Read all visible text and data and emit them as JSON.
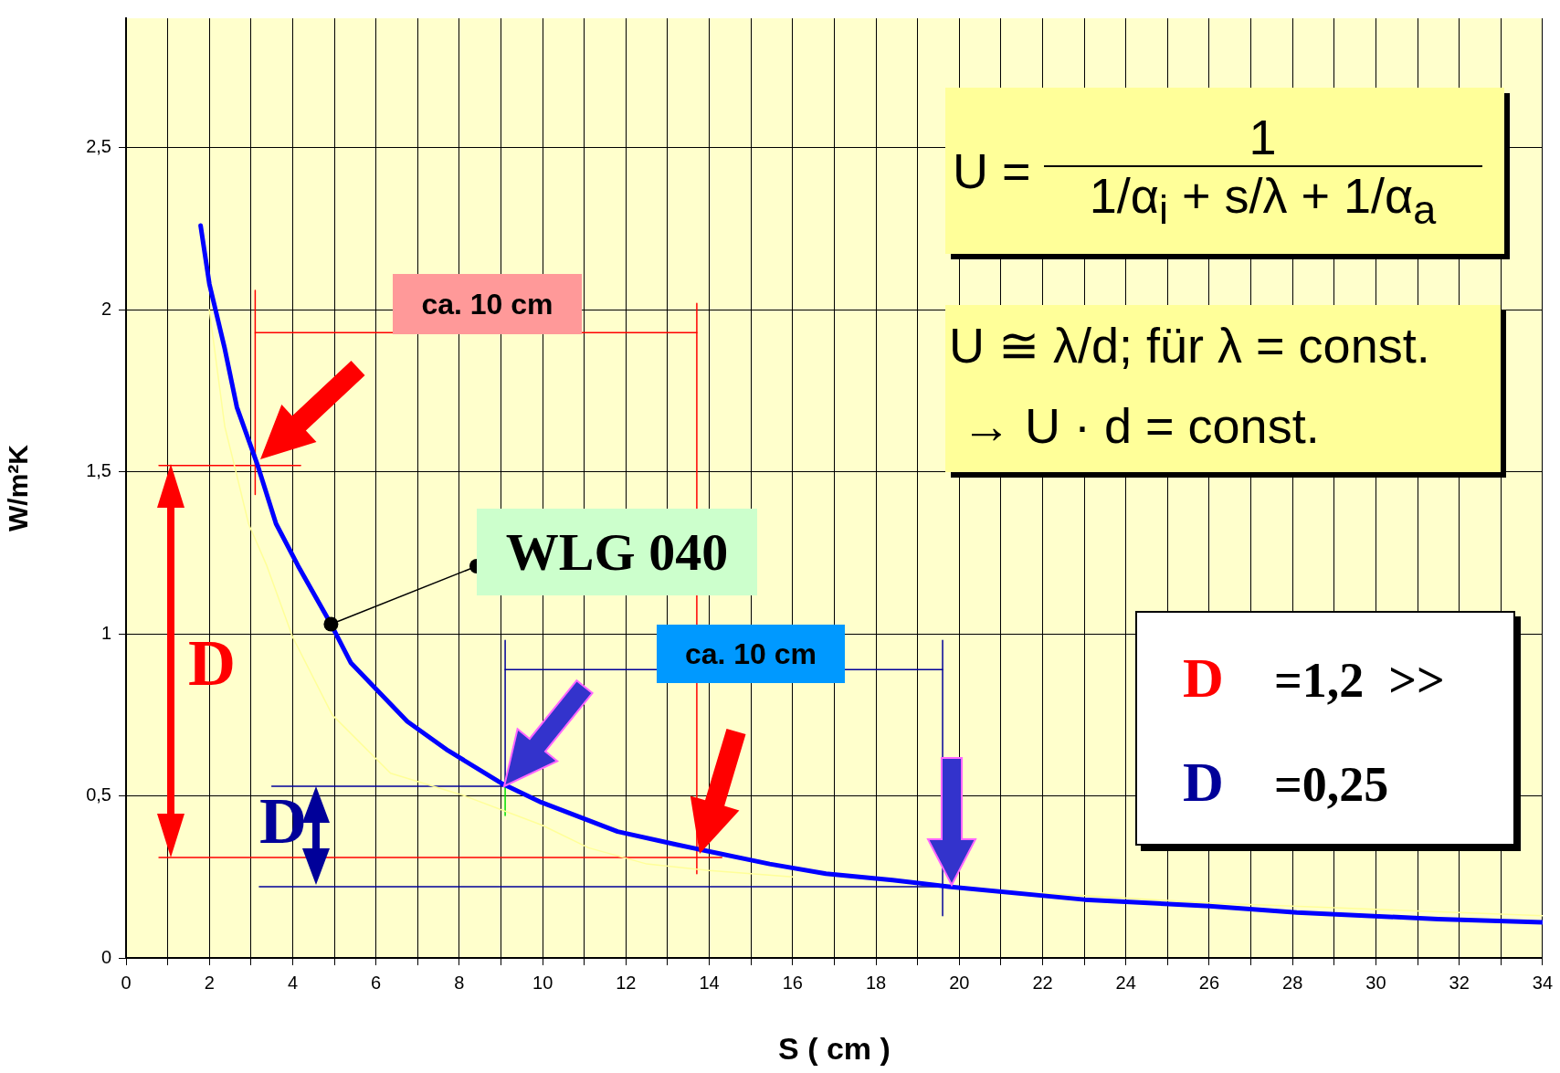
{
  "chart_data": {
    "type": "line",
    "xlabel": "S ( cm )",
    "ylabel": "W/m²K",
    "xlim": [
      0,
      34
    ],
    "ylim": [
      0,
      2.9
    ],
    "xticks": [
      0,
      {
        "value": 1,
        "label": null
      },
      2,
      {
        "value": 3,
        "label": null
      },
      4,
      {
        "value": 5,
        "label": null
      },
      6,
      {
        "value": 7,
        "label": null
      },
      8,
      {
        "value": 9,
        "label": null
      },
      10,
      {
        "value": 11,
        "label": null
      },
      12,
      {
        "value": 13,
        "label": null
      },
      14,
      {
        "value": 15,
        "label": null
      },
      16,
      {
        "value": 17,
        "label": null
      },
      18,
      {
        "value": 19,
        "label": null
      },
      20,
      {
        "value": 21,
        "label": null
      },
      22,
      {
        "value": 23,
        "label": null
      },
      24,
      {
        "value": 25,
        "label": null
      },
      26,
      {
        "value": 27,
        "label": null
      },
      28,
      {
        "value": 29,
        "label": null
      },
      30,
      {
        "value": 31,
        "label": null
      },
      32,
      {
        "value": 33,
        "label": null
      },
      34
    ],
    "yticks": [
      0,
      {
        "value": 0.5,
        "label": "0,5"
      },
      1,
      {
        "value": 1.5,
        "label": "1,5"
      },
      2,
      {
        "value": 2.5,
        "label": "2,5"
      }
    ],
    "grid": true,
    "series": [
      {
        "color": "#ffff99",
        "x": [
          2.0,
          2.37,
          2.62,
          2.94,
          3.38,
          4.0,
          4.95,
          6.35,
          8.13,
          9.98,
          11.1,
          12.5,
          14.0,
          16.0,
          18.2,
          22.0,
          26.0,
          30.0,
          34.0
        ],
        "values": [
          2.0,
          1.64,
          1.51,
          1.34,
          1.21,
          0.99,
          0.75,
          0.57,
          0.5,
          0.41,
          0.34,
          0.29,
          0.27,
          0.25,
          null,
          0.2,
          0.17,
          0.15,
          0.13
        ]
      },
      {
        "name": "WLG 040",
        "color": "#0000ff",
        "x": [
          1.79,
          2.0,
          2.37,
          2.66,
          3.16,
          3.6,
          4.13,
          4.92,
          5.4,
          6.75,
          7.73,
          9.0,
          9.97,
          11.8,
          13.2,
          15.45,
          16.8,
          18.4,
          19.75,
          23.0,
          26.0,
          28.1,
          31.5,
          34.0
        ],
        "values": [
          2.26,
          2.08,
          1.88,
          1.7,
          1.52,
          1.34,
          1.21,
          1.03,
          0.91,
          0.73,
          0.64,
          0.54,
          0.48,
          0.39,
          0.35,
          0.29,
          0.26,
          0.24,
          0.22,
          0.18,
          0.16,
          0.14,
          0.12,
          0.11
        ]
      },
      {
        "color": "#ff0000",
        "x": [
          0.79,
          4.19
        ],
        "values": [
          1.52,
          1.52
        ]
      },
      {
        "color": "#ff0000",
        "x": [
          3.1,
          3.1
        ],
        "values": [
          2.06,
          1.43
        ]
      },
      {
        "color": "#ff0000",
        "x": [
          13.7,
          13.7
        ],
        "values": [
          2.02,
          0.26
        ]
      },
      {
        "color": "#ff0000",
        "x": [
          0.79,
          14.3
        ],
        "values": [
          0.31,
          0.31
        ]
      },
      {
        "color": "#ff0000",
        "x": [
          3.1,
          13.7
        ],
        "values": [
          1.93,
          1.93
        ]
      },
      {
        "color": "#000099",
        "x": [
          3.5,
          9.1
        ],
        "values": [
          0.53,
          0.53
        ]
      },
      {
        "color": "#000099",
        "x": [
          9.1,
          9.1
        ],
        "values": [
          0.98,
          0.53
        ]
      },
      {
        "color": "#00dd00",
        "x": [
          9.1,
          9.1
        ],
        "values": [
          0.53,
          0.44
        ]
      },
      {
        "color": "#000099",
        "x": [
          3.2,
          19.6
        ],
        "values": [
          0.22,
          0.22
        ]
      },
      {
        "color": "#000099",
        "x": [
          19.6,
          19.6
        ],
        "values": [
          0.98,
          0.13
        ]
      },
      {
        "color": "#000099",
        "x": [
          9.1,
          19.6
        ],
        "values": [
          0.89,
          0.89
        ]
      }
    ],
    "annotations": [
      "ca. 10 cm",
      "ca. 10 cm",
      "D",
      "D",
      "U =",
      "1",
      "1/α$_{i}$ + s/λ + 1/α$_{a}$",
      "U ≅ λ/d; für λ = const.",
      "→ U · d = const.",
      "D",
      "=1,2  >>",
      "D",
      "=0,25"
    ]
  }
}
